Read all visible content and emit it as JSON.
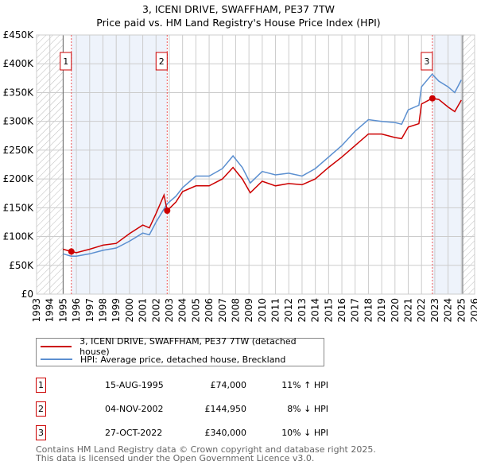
{
  "title": "3, ICENI DRIVE, SWAFFHAM, PE37 7TW",
  "subtitle": "Price paid vs. HM Land Registry's House Price Index (HPI)",
  "chart_data": {
    "type": "line",
    "title": "3, ICENI DRIVE, SWAFFHAM, PE37 7TW — Price paid vs. HM Land Registry's House Price Index (HPI)",
    "xlim": [
      1993,
      2026
    ],
    "ylim": [
      0,
      450000
    ],
    "x_ticks": [
      "1993",
      "1994",
      "1995",
      "1996",
      "1997",
      "1998",
      "1999",
      "2000",
      "2001",
      "2002",
      "2003",
      "2004",
      "2005",
      "2006",
      "2007",
      "2008",
      "2009",
      "2010",
      "2011",
      "2012",
      "2013",
      "2014",
      "2015",
      "2016",
      "2017",
      "2018",
      "2019",
      "2020",
      "2021",
      "2022",
      "2023",
      "2024",
      "2025",
      "2026"
    ],
    "y_ticks": [
      {
        "v": 0,
        "label": "£0"
      },
      {
        "v": 50000,
        "label": "£50K"
      },
      {
        "v": 100000,
        "label": "£100K"
      },
      {
        "v": 150000,
        "label": "£150K"
      },
      {
        "v": 200000,
        "label": "£200K"
      },
      {
        "v": 250000,
        "label": "£250K"
      },
      {
        "v": 300000,
        "label": "£300K"
      },
      {
        "v": 350000,
        "label": "£350K"
      },
      {
        "v": 400000,
        "label": "£400K"
      },
      {
        "v": 450000,
        "label": "£450K"
      }
    ],
    "data_range": [
      1995,
      2025.1
    ],
    "colors": {
      "property": "#cc0000",
      "hpi": "#5b8fd0",
      "shade": "#eef3fb",
      "grid": "#cccccc"
    },
    "series": [
      {
        "name": "3, ICENI DRIVE, SWAFFHAM, PE37 7TW (detached house)",
        "key": "property",
        "x": [
          1995,
          1995.6,
          1996,
          1997,
          1998,
          1999,
          2000,
          2001,
          2001.5,
          2002,
          2002.6,
          2002.84,
          2003.5,
          2004,
          2005,
          2006,
          2007,
          2007.8,
          2008.5,
          2009.1,
          2010,
          2011,
          2012,
          2013,
          2014,
          2015,
          2016,
          2017,
          2018,
          2019,
          2020,
          2020.5,
          2021,
          2021.8,
          2022,
          2022.8,
          2023.3,
          2024,
          2024.5,
          2025
        ],
        "y": [
          78000,
          74000,
          72000,
          78000,
          85000,
          88000,
          105000,
          120000,
          115000,
          140000,
          172000,
          145000,
          160000,
          178000,
          188000,
          188000,
          200000,
          220000,
          200000,
          176000,
          196000,
          188000,
          192000,
          190000,
          200000,
          220000,
          238000,
          258000,
          278000,
          278000,
          272000,
          270000,
          290000,
          296000,
          330000,
          340000,
          338000,
          325000,
          317000,
          337000
        ]
      },
      {
        "name": "HPI: Average price, detached house, Breckland",
        "key": "hpi",
        "x": [
          1995,
          1995.6,
          1996,
          1997,
          1998,
          1999,
          2000,
          2001,
          2001.5,
          2002,
          2002.84,
          2003.5,
          2004,
          2005,
          2006,
          2007,
          2007.8,
          2008.5,
          2009.1,
          2010,
          2011,
          2012,
          2013,
          2014,
          2015,
          2016,
          2017,
          2018,
          2019,
          2020,
          2020.5,
          2021,
          2021.8,
          2022,
          2022.8,
          2023.3,
          2024,
          2024.5,
          2025
        ],
        "y": [
          70000,
          66000,
          66000,
          70000,
          76000,
          80000,
          92000,
          106000,
          103000,
          125000,
          157000,
          170000,
          185000,
          205000,
          205000,
          218000,
          240000,
          220000,
          193000,
          213000,
          207000,
          210000,
          205000,
          218000,
          238000,
          258000,
          283000,
          303000,
          300000,
          298000,
          295000,
          320000,
          328000,
          360000,
          382000,
          370000,
          360000,
          350000,
          372000
        ]
      }
    ],
    "sales": [
      {
        "n": "1",
        "x": 1995.62,
        "y": 74000
      },
      {
        "n": "2",
        "x": 2002.84,
        "y": 144950
      },
      {
        "n": "3",
        "x": 2022.82,
        "y": 340000
      }
    ]
  },
  "legend": {
    "property": "3, ICENI DRIVE, SWAFFHAM, PE37 7TW (detached house)",
    "hpi": "HPI: Average price, detached house, Breckland"
  },
  "transactions": [
    {
      "n": "1",
      "date": "15-AUG-1995",
      "price": "£74,000",
      "hpi": "11% ↑ HPI"
    },
    {
      "n": "2",
      "date": "04-NOV-2002",
      "price": "£144,950",
      "hpi": "8% ↓ HPI"
    },
    {
      "n": "3",
      "date": "27-OCT-2022",
      "price": "£340,000",
      "hpi": "10% ↓ HPI"
    }
  ],
  "footer": {
    "line1": "Contains HM Land Registry data © Crown copyright and database right 2025.",
    "line2": "This data is licensed under the Open Government Licence v3.0."
  }
}
